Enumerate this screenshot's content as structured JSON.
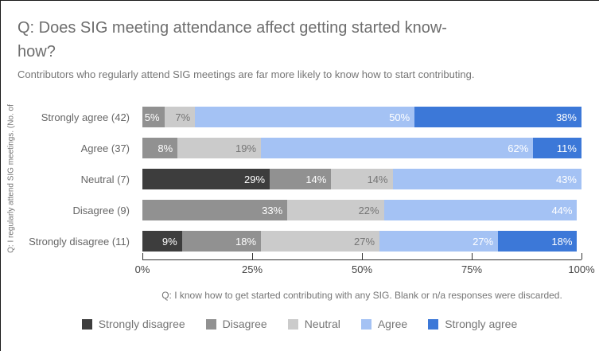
{
  "header": {
    "title_lines": [
      "Q: Does SIG meeting attendance affect getting started know-",
      "how?"
    ],
    "title": "Q: Does SIG meeting attendance affect getting started know-how?",
    "subtitle": "Contributors who regularly attend SIG meetings are far more likely to know how to start contributing."
  },
  "chart_data": {
    "type": "bar",
    "orientation": "horizontal",
    "stacked": true,
    "unit": "percent",
    "xlim": [
      0,
      100
    ],
    "y_axis_title": "Q: I regularly attend SIG meetings. (No. of",
    "x_axis_ticks": [
      {
        "label": "0%",
        "value": 0
      },
      {
        "label": "25%",
        "value": 25
      },
      {
        "label": "50%",
        "value": 50
      },
      {
        "label": "75%",
        "value": 75
      },
      {
        "label": "100%",
        "value": 100
      }
    ],
    "caption": "Q: I know how to get started contributing with any SIG. Blank or n/a responses were discarded.",
    "axis_color": "#333333",
    "legend": [
      {
        "label": "Strongly disagree",
        "color": "#3d3d3d",
        "text_color": "#ffffff"
      },
      {
        "label": "Disagree",
        "color": "#919191",
        "text_color": "#ffffff"
      },
      {
        "label": "Neutral",
        "color": "#cbcbcb",
        "text_color": "#757575"
      },
      {
        "label": "Agree",
        "color": "#a4c2f4",
        "text_color": "#ffffff"
      },
      {
        "label": "Strongly agree",
        "color": "#3c78d8",
        "text_color": "#ffffff"
      }
    ],
    "rows": [
      {
        "category": "Strongly agree (42)",
        "segments": [
          {
            "series": "Disagree",
            "value": 5,
            "label": "5%"
          },
          {
            "series": "Neutral",
            "value": 7,
            "label": "7%"
          },
          {
            "series": "Agree",
            "value": 50,
            "label": "50%"
          },
          {
            "series": "Strongly agree",
            "value": 38,
            "label": "38%"
          }
        ]
      },
      {
        "category": "Agree (37)",
        "segments": [
          {
            "series": "Disagree",
            "value": 8,
            "label": "8%"
          },
          {
            "series": "Neutral",
            "value": 19,
            "label": "19%"
          },
          {
            "series": "Agree",
            "value": 62,
            "label": "62%"
          },
          {
            "series": "Strongly agree",
            "value": 11,
            "label": "11%"
          }
        ]
      },
      {
        "category": "Neutral (7)",
        "segments": [
          {
            "series": "Strongly disagree",
            "value": 29,
            "label": "29%"
          },
          {
            "series": "Disagree",
            "value": 14,
            "label": "14%"
          },
          {
            "series": "Neutral",
            "value": 14,
            "label": "14%"
          },
          {
            "series": "Agree",
            "value": 43,
            "label": "43%"
          }
        ]
      },
      {
        "category": "Disagree (9)",
        "segments": [
          {
            "series": "Disagree",
            "value": 33,
            "label": "33%"
          },
          {
            "series": "Neutral",
            "value": 22,
            "label": "22%"
          },
          {
            "series": "Agree",
            "value": 44,
            "label": "44%"
          }
        ]
      },
      {
        "category": "Strongly disagree (11)",
        "segments": [
          {
            "series": "Strongly disagree",
            "value": 9,
            "label": "9%"
          },
          {
            "series": "Disagree",
            "value": 18,
            "label": "18%"
          },
          {
            "series": "Neutral",
            "value": 27,
            "label": "27%"
          },
          {
            "series": "Agree",
            "value": 27,
            "label": "27%"
          },
          {
            "series": "Strongly agree",
            "value": 18,
            "label": "18%"
          }
        ]
      }
    ]
  }
}
